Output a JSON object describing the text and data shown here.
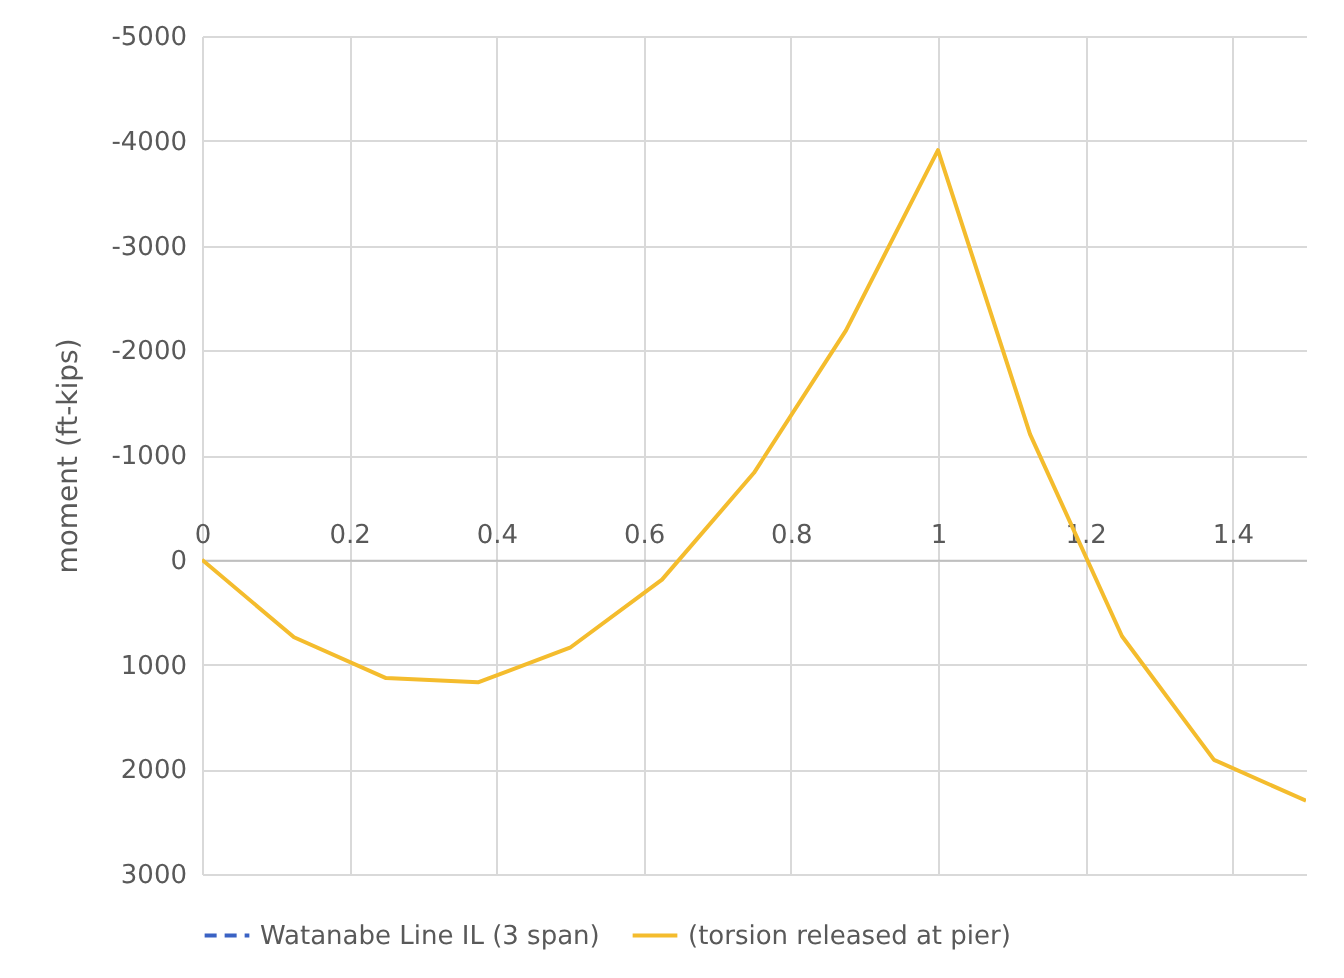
{
  "chart_data": {
    "type": "line",
    "ylabel": "moment (ft-kips)",
    "x": [
      0,
      0.125,
      0.25,
      0.375,
      0.5,
      0.625,
      0.75,
      0.875,
      1,
      1.125,
      1.25,
      1.375,
      1.5
    ],
    "xlim": [
      0,
      1.5
    ],
    "xticks": [
      0,
      0.2,
      0.4,
      0.6,
      0.8,
      1,
      1.2,
      1.4
    ],
    "ylim": [
      3000,
      -5000
    ],
    "yticks": [
      -5000,
      -4000,
      -3000,
      -2000,
      -1000,
      0,
      1000,
      2000,
      3000
    ],
    "grid": true,
    "legend": "bottom",
    "marker": "none",
    "series": [
      {
        "name": "Watanabe Line IL (3 span)",
        "color": "#3a62c4",
        "line_style": "dashed",
        "values": [
          null,
          null,
          null,
          null,
          null,
          null,
          null,
          null,
          null,
          null,
          null,
          null,
          null
        ]
      },
      {
        "name": "(torsion released at pier)",
        "color": "#f4bc2d",
        "line_style": "solid",
        "values": [
          0,
          740,
          1130,
          1170,
          840,
          190,
          -830,
          -2190,
          -3910,
          -1200,
          730,
          1910,
          2300
        ]
      }
    ]
  }
}
